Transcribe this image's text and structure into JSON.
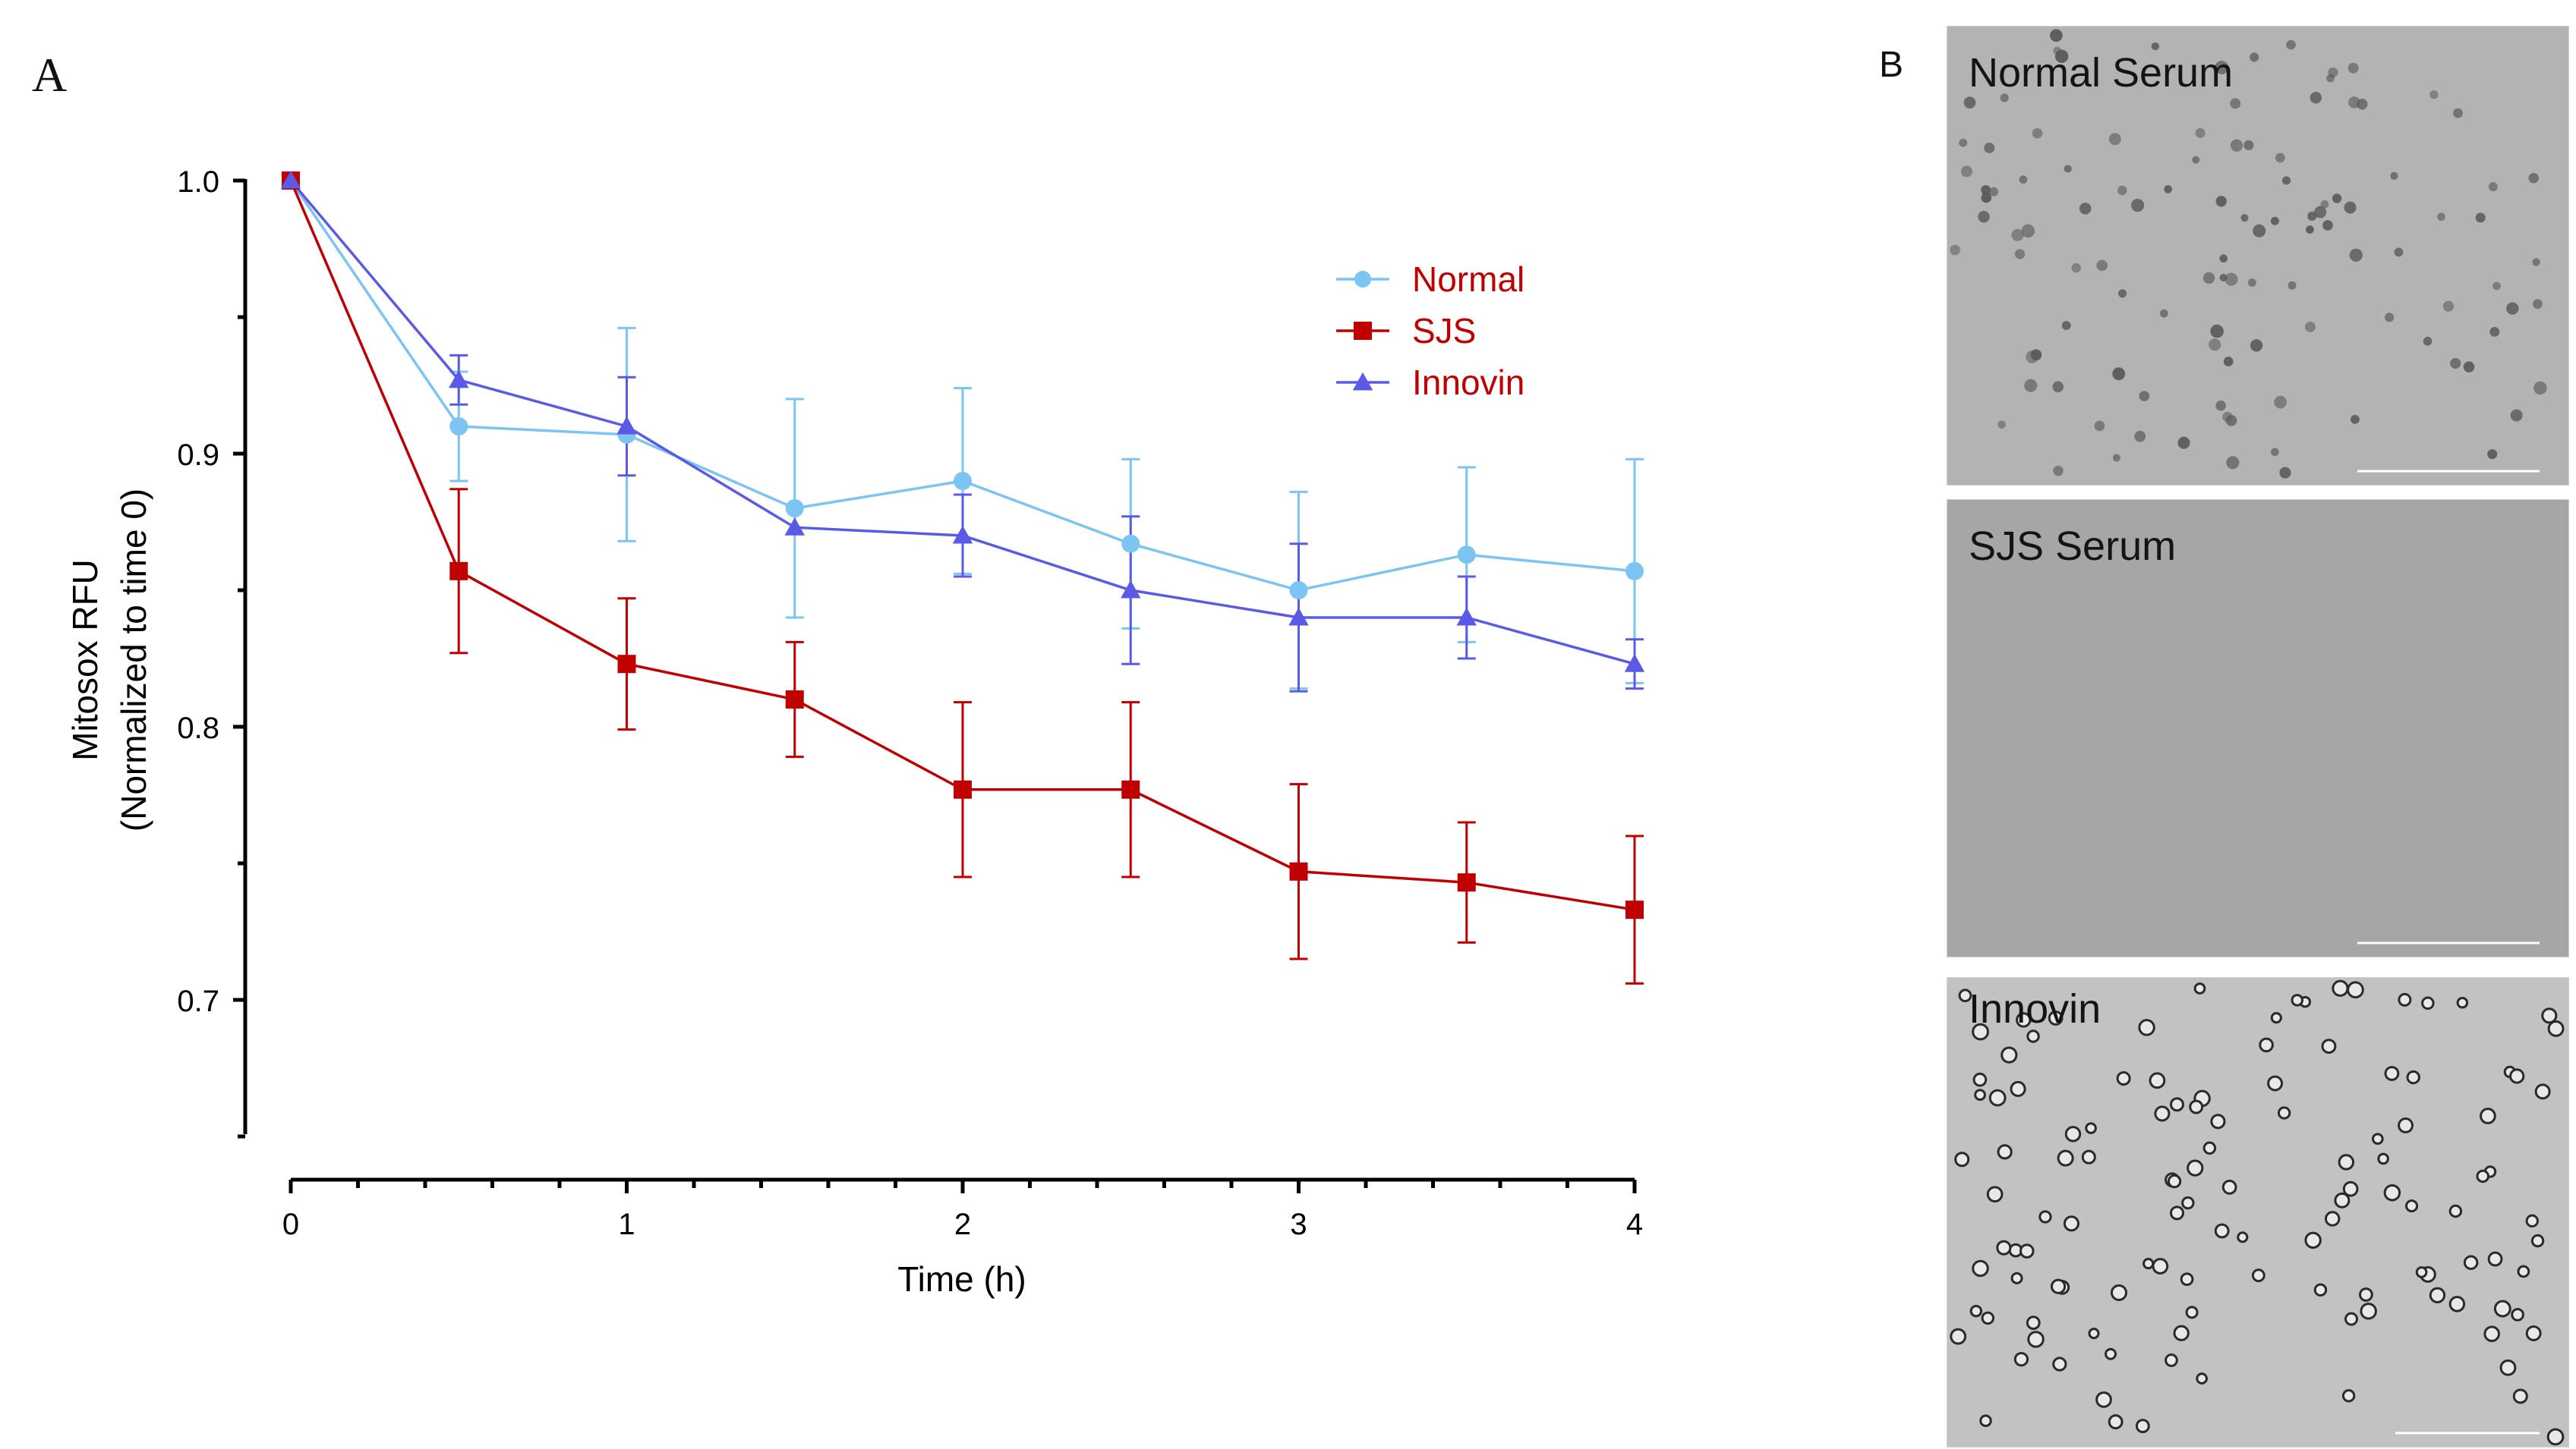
{
  "panels": {
    "a_label": "A",
    "b_label": "B"
  },
  "chart_data": {
    "type": "line",
    "title": "",
    "xlabel": "Time (h)",
    "ylabel": "Mitosox RFU",
    "ylabel_sub": "(Normalized to time 0)",
    "x": [
      0,
      0.5,
      1,
      1.5,
      2,
      2.5,
      3,
      3.5,
      4
    ],
    "xlim": [
      0,
      4
    ],
    "ylim": [
      0.65,
      1.0
    ],
    "xticks": [
      0,
      1,
      2,
      3,
      4
    ],
    "xtick_labels": [
      "0",
      "1",
      "2",
      "3",
      "4"
    ],
    "yticks": [
      0.7,
      0.8,
      0.9,
      1.0
    ],
    "ytick_labels": [
      "0.7",
      "0.8",
      "0.9",
      "1.0"
    ],
    "legend_position": "top-right",
    "series": [
      {
        "name": "Normal",
        "color": "#7cc4f2",
        "marker": "circle",
        "values": [
          1.0,
          0.91,
          0.907,
          0.88,
          0.89,
          0.867,
          0.85,
          0.863,
          0.857
        ],
        "errors": [
          0,
          0.02,
          0.039,
          0.04,
          0.034,
          0.031,
          0.036,
          0.032,
          0.041
        ]
      },
      {
        "name": "SJS",
        "color": "#c00000",
        "marker": "square",
        "values": [
          1.0,
          0.857,
          0.823,
          0.81,
          0.777,
          0.777,
          0.747,
          0.743,
          0.733
        ],
        "errors": [
          0,
          0.03,
          0.024,
          0.021,
          0.032,
          0.032,
          0.032,
          0.022,
          0.027
        ]
      },
      {
        "name": "Innovin",
        "color": "#5a5ae6",
        "marker": "triangle",
        "values": [
          1.0,
          0.927,
          0.91,
          0.873,
          0.87,
          0.85,
          0.84,
          0.84,
          0.823
        ],
        "errors": [
          0,
          0.009,
          0.018,
          0.0,
          0.015,
          0.027,
          0.027,
          0.015,
          0.009
        ]
      }
    ]
  },
  "micrographs": [
    {
      "title": "Normal Serum"
    },
    {
      "title": "SJS Serum"
    },
    {
      "title": "Innovin"
    }
  ],
  "colors": {
    "legend_text": "#c00000",
    "axis": "#000000"
  }
}
